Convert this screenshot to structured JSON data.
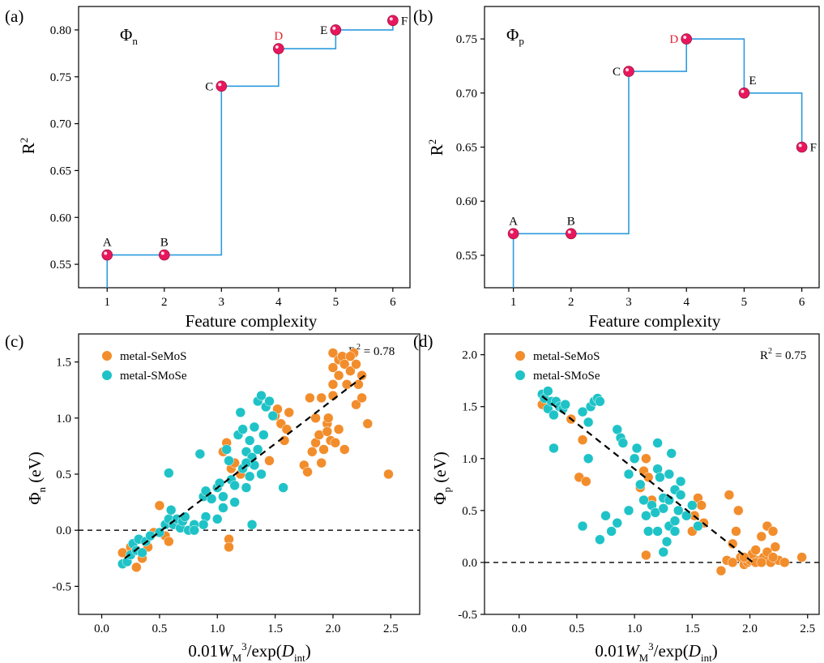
{
  "colors": {
    "step_line": "#2e9bde",
    "marker": "#e8175d",
    "highlight_label": "#e8212b",
    "seMoS": "#f28d2c",
    "sMoSe": "#1fc3c7",
    "axis": "#000000"
  },
  "chart_data": [
    {
      "id": "a",
      "type": "line",
      "panel_label": "(a)",
      "title": "Φn",
      "xlabel": "Feature complexity",
      "ylabel": "R2",
      "xlim": [
        0.5,
        6.3
      ],
      "ylim": [
        0.525,
        0.825
      ],
      "xticks": [
        "1",
        "2",
        "3",
        "4",
        "5",
        "6"
      ],
      "yticks": [
        "0.55",
        "0.60",
        "0.65",
        "0.70",
        "0.75",
        "0.80"
      ],
      "step_style": "hv",
      "drop_to_axis_at_first_point": true,
      "points": [
        {
          "x": 1,
          "y": 0.56,
          "label": "A",
          "highlight": false,
          "label_pos": "above"
        },
        {
          "x": 2,
          "y": 0.56,
          "label": "B",
          "highlight": false,
          "label_pos": "above"
        },
        {
          "x": 3,
          "y": 0.74,
          "label": "C",
          "highlight": false,
          "label_pos": "left"
        },
        {
          "x": 4,
          "y": 0.78,
          "label": "D",
          "highlight": true,
          "label_pos": "above"
        },
        {
          "x": 5,
          "y": 0.8,
          "label": "E",
          "highlight": false,
          "label_pos": "left"
        },
        {
          "x": 6,
          "y": 0.81,
          "label": "F",
          "highlight": false,
          "label_pos": "right"
        }
      ]
    },
    {
      "id": "b",
      "type": "line",
      "panel_label": "(b)",
      "title": "Φp",
      "xlabel": "Feature complexity",
      "ylabel": "R2",
      "xlim": [
        0.5,
        6.3
      ],
      "ylim": [
        0.52,
        0.78
      ],
      "xticks": [
        "1",
        "2",
        "3",
        "4",
        "5",
        "6"
      ],
      "yticks": [
        "0.55",
        "0.60",
        "0.65",
        "0.70",
        "0.75"
      ],
      "step_style": "hv",
      "drop_to_axis_at_first_point": true,
      "points": [
        {
          "x": 1,
          "y": 0.57,
          "label": "A",
          "highlight": false,
          "label_pos": "above"
        },
        {
          "x": 2,
          "y": 0.57,
          "label": "B",
          "highlight": false,
          "label_pos": "above"
        },
        {
          "x": 3,
          "y": 0.72,
          "label": "C",
          "highlight": false,
          "label_pos": "left"
        },
        {
          "x": 4,
          "y": 0.75,
          "label": "D",
          "highlight": true,
          "label_pos": "left"
        },
        {
          "x": 5,
          "y": 0.7,
          "label": "E",
          "highlight": false,
          "label_pos": "aboveright"
        },
        {
          "x": 6,
          "y": 0.65,
          "label": "F",
          "highlight": false,
          "label_pos": "right"
        }
      ]
    },
    {
      "id": "c",
      "type": "scatter",
      "panel_label": "(c)",
      "xlabel": "0.01WM3/exp(Dint)",
      "ylabel": "Φn (eV)",
      "annotation": "R2 = 0.78",
      "xlim": [
        -0.2,
        2.75
      ],
      "ylim": [
        -0.75,
        1.75
      ],
      "xticks": [
        "0.0",
        "0.5",
        "1.0",
        "1.5",
        "2.0",
        "2.5"
      ],
      "yticks": [
        "-0.5",
        "0.0",
        "0.5",
        "1.0",
        "1.5"
      ],
      "zero_line": 0.0,
      "fit_line": [
        [
          0.2,
          -0.25
        ],
        [
          2.3,
          1.4
        ]
      ],
      "legend_position": "top-left",
      "series": [
        {
          "name": "metal-SeMoS",
          "color_key": "seMoS",
          "points": [
            [
              0.18,
              -0.2
            ],
            [
              0.25,
              -0.15
            ],
            [
              0.3,
              -0.33
            ],
            [
              0.35,
              -0.25
            ],
            [
              0.4,
              -0.15
            ],
            [
              0.45,
              -0.02
            ],
            [
              0.5,
              0.22
            ],
            [
              0.55,
              -0.05
            ],
            [
              0.58,
              -0.1
            ],
            [
              1.05,
              0.7
            ],
            [
              1.08,
              0.78
            ],
            [
              1.1,
              -0.08
            ],
            [
              1.1,
              -0.15
            ],
            [
              1.12,
              0.55
            ],
            [
              1.15,
              0.6
            ],
            [
              1.2,
              0.5
            ],
            [
              1.45,
              0.62
            ],
            [
              1.5,
              1.02
            ],
            [
              1.52,
              1.08
            ],
            [
              1.55,
              0.95
            ],
            [
              1.58,
              0.8
            ],
            [
              1.6,
              0.9
            ],
            [
              1.62,
              1.05
            ],
            [
              1.75,
              0.58
            ],
            [
              1.78,
              0.52
            ],
            [
              1.8,
              1.18
            ],
            [
              1.82,
              0.7
            ],
            [
              1.85,
              0.78
            ],
            [
              1.88,
              0.85
            ],
            [
              1.9,
              1.18
            ],
            [
              1.9,
              0.6
            ],
            [
              1.92,
              0.72
            ],
            [
              1.95,
              0.95
            ],
            [
              1.95,
              0.88
            ],
            [
              1.98,
              0.8
            ],
            [
              2.0,
              1.2
            ],
            [
              2.0,
              1.45
            ],
            [
              2.0,
              1.58
            ],
            [
              2.02,
              0.78
            ],
            [
              2.05,
              1.38
            ],
            [
              2.05,
              1.52
            ],
            [
              2.08,
              1.55
            ],
            [
              2.1,
              0.72
            ],
            [
              2.1,
              1.48
            ],
            [
              2.12,
              1.3
            ],
            [
              2.15,
              1.42
            ],
            [
              2.18,
              1.58
            ],
            [
              2.2,
              1.12
            ],
            [
              2.22,
              1.3
            ],
            [
              2.25,
              1.18
            ],
            [
              2.3,
              0.95
            ],
            [
              2.48,
              0.5
            ],
            [
              1.96,
              1.0
            ],
            [
              2.05,
              0.9
            ],
            [
              1.85,
              1.0
            ],
            [
              2.15,
              1.55
            ],
            [
              2.2,
              1.48
            ],
            [
              2.25,
              1.38
            ],
            [
              2.0,
              1.3
            ]
          ]
        },
        {
          "name": "metal-SMoSe",
          "color_key": "sMoSe",
          "points": [
            [
              0.18,
              -0.3
            ],
            [
              0.22,
              -0.28
            ],
            [
              0.25,
              -0.22
            ],
            [
              0.27,
              -0.12
            ],
            [
              0.3,
              -0.18
            ],
            [
              0.32,
              -0.08
            ],
            [
              0.35,
              -0.2
            ],
            [
              0.38,
              -0.1
            ],
            [
              0.42,
              -0.05
            ],
            [
              0.5,
              -0.02
            ],
            [
              0.55,
              0.05
            ],
            [
              0.58,
              0.1
            ],
            [
              0.6,
              0.18
            ],
            [
              0.62,
              0.05
            ],
            [
              0.65,
              0.1
            ],
            [
              0.68,
              0.02
            ],
            [
              0.7,
              0.08
            ],
            [
              0.72,
              0.12
            ],
            [
              0.75,
              0.0
            ],
            [
              0.8,
              0.05
            ],
            [
              0.58,
              0.51
            ],
            [
              0.85,
              0.68
            ],
            [
              0.88,
              0.3
            ],
            [
              0.9,
              0.35
            ],
            [
              0.95,
              0.28
            ],
            [
              1.0,
              0.38
            ],
            [
              1.02,
              0.42
            ],
            [
              1.05,
              0.3
            ],
            [
              1.08,
              0.72
            ],
            [
              1.1,
              0.62
            ],
            [
              1.12,
              0.45
            ],
            [
              1.15,
              0.4
            ],
            [
              1.18,
              0.85
            ],
            [
              1.2,
              1.05
            ],
            [
              1.22,
              0.9
            ],
            [
              1.22,
              0.55
            ],
            [
              1.25,
              0.7
            ],
            [
              1.25,
              0.38
            ],
            [
              1.28,
              0.8
            ],
            [
              1.28,
              0.48
            ],
            [
              1.3,
              0.65
            ],
            [
              1.32,
              0.92
            ],
            [
              1.32,
              0.58
            ],
            [
              1.35,
              0.72
            ],
            [
              1.35,
              1.15
            ],
            [
              1.38,
              1.2
            ],
            [
              1.38,
              0.5
            ],
            [
              1.4,
              0.85
            ],
            [
              1.42,
              1.1
            ],
            [
              1.45,
              1.15
            ],
            [
              1.48,
              1.02
            ],
            [
              1.3,
              0.05
            ],
            [
              1.57,
              0.38
            ],
            [
              0.9,
              0.12
            ],
            [
              1.0,
              0.1
            ],
            [
              0.88,
              0.05
            ],
            [
              0.8,
              0.0
            ],
            [
              1.05,
              0.2
            ],
            [
              1.15,
              0.25
            ],
            [
              1.25,
              0.6
            ]
          ]
        }
      ]
    },
    {
      "id": "d",
      "type": "scatter",
      "panel_label": "(d)",
      "xlabel": "0.01WM3/exp(Dint)",
      "ylabel": "Φp (eV)",
      "annotation": "R2 = 0.75",
      "xlim": [
        -0.3,
        2.6
      ],
      "ylim": [
        -0.5,
        2.2
      ],
      "xticks": [
        "0.0",
        "0.5",
        "1.0",
        "1.5",
        "2.0",
        "2.5"
      ],
      "yticks": [
        "-0.5",
        "0.0",
        "0.5",
        "1.0",
        "1.5",
        "2.0"
      ],
      "zero_line": 0.0,
      "fit_line": [
        [
          0.2,
          1.6
        ],
        [
          2.05,
          -0.02
        ]
      ],
      "legend_position": "top-left",
      "series": [
        {
          "name": "metal-SeMoS",
          "color_key": "seMoS",
          "points": [
            [
              0.2,
              1.52
            ],
            [
              0.45,
              1.38
            ],
            [
              0.52,
              0.82
            ],
            [
              0.55,
              1.18
            ],
            [
              0.58,
              0.78
            ],
            [
              1.05,
              0.72
            ],
            [
              1.08,
              0.88
            ],
            [
              1.1,
              1.0
            ],
            [
              1.1,
              0.07
            ],
            [
              1.12,
              0.82
            ],
            [
              1.15,
              0.6
            ],
            [
              1.5,
              0.3
            ],
            [
              1.52,
              0.45
            ],
            [
              1.55,
              0.62
            ],
            [
              1.58,
              0.55
            ],
            [
              1.6,
              0.38
            ],
            [
              1.75,
              -0.08
            ],
            [
              1.8,
              0.02
            ],
            [
              1.82,
              0.65
            ],
            [
              1.85,
              0.18
            ],
            [
              1.85,
              0.0
            ],
            [
              1.88,
              0.3
            ],
            [
              1.9,
              0.5
            ],
            [
              1.92,
              0.05
            ],
            [
              1.95,
              -0.02
            ],
            [
              1.98,
              0.0
            ],
            [
              2.0,
              0.02
            ],
            [
              2.02,
              0.08
            ],
            [
              2.05,
              0.12
            ],
            [
              2.08,
              0.02
            ],
            [
              2.1,
              0.25
            ],
            [
              2.12,
              0.05
            ],
            [
              2.15,
              0.35
            ],
            [
              2.15,
              0.1
            ],
            [
              2.18,
              0.0
            ],
            [
              2.2,
              0.3
            ],
            [
              2.22,
              0.15
            ],
            [
              2.25,
              0.02
            ],
            [
              2.3,
              0.0
            ],
            [
              2.45,
              0.05
            ],
            [
              2.05,
              0.0
            ],
            [
              2.1,
              0.0
            ],
            [
              1.95,
              0.05
            ],
            [
              2.2,
              0.05
            ]
          ]
        },
        {
          "name": "metal-SMoSe",
          "color_key": "sMoSe",
          "points": [
            [
              0.2,
              1.62
            ],
            [
              0.22,
              1.58
            ],
            [
              0.25,
              1.48
            ],
            [
              0.25,
              1.65
            ],
            [
              0.28,
              1.55
            ],
            [
              0.3,
              1.42
            ],
            [
              0.3,
              1.1
            ],
            [
              0.32,
              1.55
            ],
            [
              0.35,
              1.5
            ],
            [
              0.38,
              1.48
            ],
            [
              0.4,
              1.52
            ],
            [
              0.55,
              1.45
            ],
            [
              0.6,
              1.35
            ],
            [
              0.62,
              1.5
            ],
            [
              0.65,
              1.55
            ],
            [
              0.68,
              1.58
            ],
            [
              0.7,
              1.55
            ],
            [
              0.55,
              0.35
            ],
            [
              0.6,
              1.0
            ],
            [
              0.7,
              0.22
            ],
            [
              0.75,
              0.45
            ],
            [
              0.8,
              0.3
            ],
            [
              0.85,
              1.28
            ],
            [
              0.88,
              1.2
            ],
            [
              0.9,
              1.15
            ],
            [
              0.95,
              0.5
            ],
            [
              1.0,
              1.0
            ],
            [
              1.02,
              1.1
            ],
            [
              1.05,
              0.75
            ],
            [
              1.08,
              0.6
            ],
            [
              1.1,
              0.45
            ],
            [
              1.12,
              0.3
            ],
            [
              1.15,
              0.55
            ],
            [
              1.18,
              0.48
            ],
            [
              1.2,
              1.15
            ],
            [
              1.2,
              0.9
            ],
            [
              1.22,
              0.82
            ],
            [
              1.25,
              0.62
            ],
            [
              1.25,
              0.1
            ],
            [
              1.28,
              0.2
            ],
            [
              1.3,
              0.35
            ],
            [
              1.3,
              0.85
            ],
            [
              1.32,
              1.05
            ],
            [
              1.35,
              0.7
            ],
            [
              1.35,
              0.4
            ],
            [
              1.38,
              0.5
            ],
            [
              1.4,
              0.78
            ],
            [
              1.45,
              0.45
            ],
            [
              1.5,
              0.55
            ],
            [
              1.55,
              0.35
            ],
            [
              1.25,
              0.52
            ],
            [
              1.3,
              0.6
            ],
            [
              1.35,
              0.3
            ],
            [
              1.4,
              0.65
            ],
            [
              1.2,
              0.3
            ],
            [
              0.85,
              0.38
            ],
            [
              0.95,
              0.85
            ]
          ]
        }
      ]
    }
  ]
}
